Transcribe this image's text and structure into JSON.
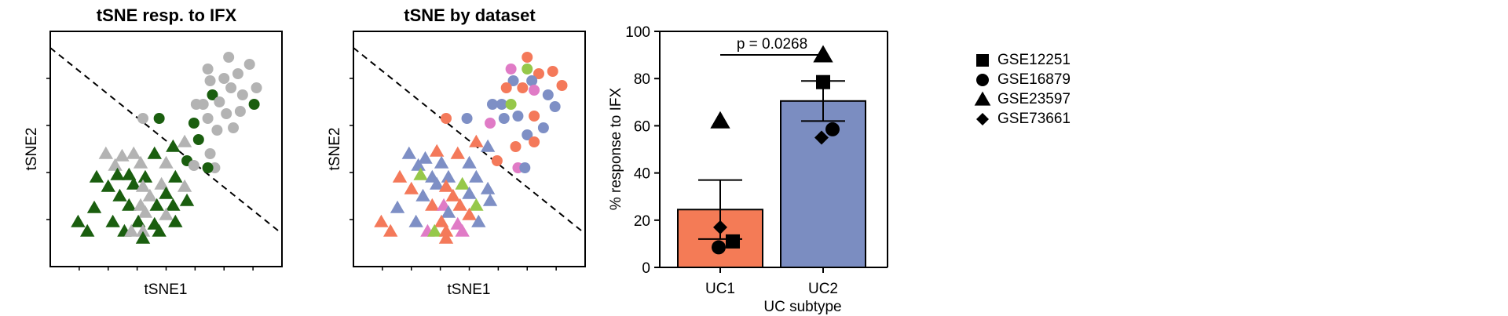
{
  "chart_data": [
    {
      "type": "scatter",
      "title": "tSNE resp. to IFX",
      "xlabel": "tSNE1",
      "ylabel": "tSNE2",
      "xlim": [
        0,
        10
      ],
      "ylim": [
        0,
        10
      ],
      "dashed_line": [
        [
          0,
          9.3
        ],
        [
          10,
          1.4
        ]
      ],
      "colors": {
        "responder": "#1a5e0f",
        "nonresponder": "#b3b3b3"
      },
      "points": [
        {
          "x": 6.8,
          "y": 8.4,
          "shape": "circle",
          "color": "#b3b3b3"
        },
        {
          "x": 7.7,
          "y": 8.9,
          "shape": "circle",
          "color": "#b3b3b3"
        },
        {
          "x": 8.6,
          "y": 8.6,
          "shape": "circle",
          "color": "#b3b3b3"
        },
        {
          "x": 6.9,
          "y": 7.9,
          "shape": "circle",
          "color": "#b3b3b3"
        },
        {
          "x": 7.5,
          "y": 8.0,
          "shape": "circle",
          "color": "#b3b3b3"
        },
        {
          "x": 8.1,
          "y": 8.2,
          "shape": "circle",
          "color": "#b3b3b3"
        },
        {
          "x": 7.0,
          "y": 7.3,
          "shape": "circle",
          "color": "#1a5e0f"
        },
        {
          "x": 7.3,
          "y": 7.0,
          "shape": "circle",
          "color": "#b3b3b3"
        },
        {
          "x": 7.8,
          "y": 7.6,
          "shape": "circle",
          "color": "#b3b3b3"
        },
        {
          "x": 8.3,
          "y": 7.3,
          "shape": "circle",
          "color": "#b3b3b3"
        },
        {
          "x": 8.9,
          "y": 7.6,
          "shape": "circle",
          "color": "#b3b3b3"
        },
        {
          "x": 6.3,
          "y": 6.9,
          "shape": "circle",
          "color": "#b3b3b3"
        },
        {
          "x": 6.6,
          "y": 6.9,
          "shape": "circle",
          "color": "#b3b3b3"
        },
        {
          "x": 6.8,
          "y": 6.3,
          "shape": "circle",
          "color": "#b3b3b3"
        },
        {
          "x": 7.6,
          "y": 6.5,
          "shape": "circle",
          "color": "#b3b3b3"
        },
        {
          "x": 8.2,
          "y": 6.6,
          "shape": "circle",
          "color": "#b3b3b3"
        },
        {
          "x": 8.8,
          "y": 6.9,
          "shape": "circle",
          "color": "#1a5e0f"
        },
        {
          "x": 6.2,
          "y": 6.1,
          "shape": "circle",
          "color": "#1a5e0f"
        },
        {
          "x": 7.2,
          "y": 5.8,
          "shape": "circle",
          "color": "#b3b3b3"
        },
        {
          "x": 7.9,
          "y": 5.9,
          "shape": "circle",
          "color": "#b3b3b3"
        },
        {
          "x": 4.7,
          "y": 6.3,
          "shape": "circle",
          "color": "#1a5e0f"
        },
        {
          "x": 4.0,
          "y": 6.3,
          "shape": "circle",
          "color": "#b3b3b3"
        },
        {
          "x": 6.4,
          "y": 5.4,
          "shape": "circle",
          "color": "#1a5e0f"
        },
        {
          "x": 6.9,
          "y": 4.8,
          "shape": "circle",
          "color": "#b3b3b3"
        },
        {
          "x": 5.9,
          "y": 4.5,
          "shape": "circle",
          "color": "#1a5e0f"
        },
        {
          "x": 6.2,
          "y": 4.3,
          "shape": "circle",
          "color": "#b3b3b3"
        },
        {
          "x": 7.1,
          "y": 4.2,
          "shape": "circle",
          "color": "#b3b3b3"
        },
        {
          "x": 6.8,
          "y": 4.2,
          "shape": "circle",
          "color": "#1a5e0f"
        },
        {
          "x": 5.8,
          "y": 5.3,
          "shape": "triangle",
          "color": "#b3b3b3"
        },
        {
          "x": 5.3,
          "y": 5.1,
          "shape": "triangle",
          "color": "#1a5e0f"
        },
        {
          "x": 2.4,
          "y": 4.8,
          "shape": "triangle",
          "color": "#b3b3b3"
        },
        {
          "x": 3.6,
          "y": 4.8,
          "shape": "triangle",
          "color": "#b3b3b3"
        },
        {
          "x": 4.5,
          "y": 4.8,
          "shape": "triangle",
          "color": "#1a5e0f"
        },
        {
          "x": 3.1,
          "y": 4.7,
          "shape": "triangle",
          "color": "#b3b3b3"
        },
        {
          "x": 2.8,
          "y": 4.3,
          "shape": "triangle",
          "color": "#b3b3b3"
        },
        {
          "x": 3.9,
          "y": 4.4,
          "shape": "triangle",
          "color": "#b3b3b3"
        },
        {
          "x": 5.0,
          "y": 4.4,
          "shape": "triangle",
          "color": "#b3b3b3"
        },
        {
          "x": 2.0,
          "y": 3.8,
          "shape": "triangle",
          "color": "#1a5e0f"
        },
        {
          "x": 2.9,
          "y": 3.9,
          "shape": "triangle",
          "color": "#1a5e0f"
        },
        {
          "x": 3.4,
          "y": 3.9,
          "shape": "triangle",
          "color": "#1a5e0f"
        },
        {
          "x": 4.1,
          "y": 3.8,
          "shape": "triangle",
          "color": "#1a5e0f"
        },
        {
          "x": 5.4,
          "y": 3.8,
          "shape": "triangle",
          "color": "#1a5e0f"
        },
        {
          "x": 2.5,
          "y": 3.4,
          "shape": "triangle",
          "color": "#1a5e0f"
        },
        {
          "x": 3.6,
          "y": 3.5,
          "shape": "triangle",
          "color": "#1a5e0f"
        },
        {
          "x": 4.0,
          "y": 3.4,
          "shape": "triangle",
          "color": "#b3b3b3"
        },
        {
          "x": 4.8,
          "y": 3.5,
          "shape": "triangle",
          "color": "#b3b3b3"
        },
        {
          "x": 5.8,
          "y": 3.4,
          "shape": "triangle",
          "color": "#b3b3b3"
        },
        {
          "x": 3.0,
          "y": 3.0,
          "shape": "triangle",
          "color": "#1a5e0f"
        },
        {
          "x": 4.3,
          "y": 3.0,
          "shape": "triangle",
          "color": "#b3b3b3"
        },
        {
          "x": 5.0,
          "y": 3.1,
          "shape": "triangle",
          "color": "#1a5e0f"
        },
        {
          "x": 1.9,
          "y": 2.5,
          "shape": "triangle",
          "color": "#1a5e0f"
        },
        {
          "x": 3.4,
          "y": 2.6,
          "shape": "triangle",
          "color": "#1a5e0f"
        },
        {
          "x": 3.9,
          "y": 2.6,
          "shape": "triangle",
          "color": "#b3b3b3"
        },
        {
          "x": 4.6,
          "y": 2.6,
          "shape": "triangle",
          "color": "#1a5e0f"
        },
        {
          "x": 5.3,
          "y": 2.6,
          "shape": "triangle",
          "color": "#1a5e0f"
        },
        {
          "x": 5.9,
          "y": 2.8,
          "shape": "triangle",
          "color": "#1a5e0f"
        },
        {
          "x": 4.1,
          "y": 2.3,
          "shape": "triangle",
          "color": "#b3b3b3"
        },
        {
          "x": 5.0,
          "y": 2.2,
          "shape": "triangle",
          "color": "#b3b3b3"
        },
        {
          "x": 3.8,
          "y": 1.9,
          "shape": "triangle",
          "color": "#1a5e0f"
        },
        {
          "x": 4.5,
          "y": 1.8,
          "shape": "triangle",
          "color": "#1a5e0f"
        },
        {
          "x": 5.4,
          "y": 1.9,
          "shape": "triangle",
          "color": "#1a5e0f"
        },
        {
          "x": 1.2,
          "y": 1.9,
          "shape": "triangle",
          "color": "#1a5e0f"
        },
        {
          "x": 2.7,
          "y": 1.9,
          "shape": "triangle",
          "color": "#1a5e0f"
        },
        {
          "x": 1.6,
          "y": 1.5,
          "shape": "triangle",
          "color": "#1a5e0f"
        },
        {
          "x": 3.2,
          "y": 1.5,
          "shape": "triangle",
          "color": "#1a5e0f"
        },
        {
          "x": 3.5,
          "y": 1.5,
          "shape": "triangle",
          "color": "#b3b3b3"
        },
        {
          "x": 4.0,
          "y": 1.5,
          "shape": "triangle",
          "color": "#b3b3b3"
        },
        {
          "x": 4.7,
          "y": 1.5,
          "shape": "triangle",
          "color": "#1a5e0f"
        },
        {
          "x": 4.0,
          "y": 1.2,
          "shape": "triangle",
          "color": "#1a5e0f"
        }
      ]
    },
    {
      "type": "scatter",
      "title": "tSNE by dataset",
      "xlabel": "tSNE1",
      "ylabel": "tSNE2",
      "xlim": [
        0,
        10
      ],
      "ylim": [
        0,
        10
      ],
      "dashed_line": [
        [
          0,
          9.3
        ],
        [
          10,
          1.4
        ]
      ],
      "colors": {
        "orange": "#f4795a",
        "blue": "#7e8fc5",
        "pink": "#e07bc6",
        "green": "#96c84a"
      },
      "points": [
        {
          "x": 7.5,
          "y": 8.9,
          "shape": "circle",
          "color": "#f4795a"
        },
        {
          "x": 6.8,
          "y": 8.4,
          "shape": "circle",
          "color": "#e07bc6"
        },
        {
          "x": 7.5,
          "y": 8.4,
          "shape": "circle",
          "color": "#96c84a"
        },
        {
          "x": 8.0,
          "y": 8.2,
          "shape": "circle",
          "color": "#f4795a"
        },
        {
          "x": 8.6,
          "y": 8.3,
          "shape": "circle",
          "color": "#f4795a"
        },
        {
          "x": 6.9,
          "y": 7.9,
          "shape": "circle",
          "color": "#7e8fc5"
        },
        {
          "x": 7.7,
          "y": 7.9,
          "shape": "circle",
          "color": "#7e8fc5"
        },
        {
          "x": 6.6,
          "y": 7.6,
          "shape": "circle",
          "color": "#f4795a"
        },
        {
          "x": 7.3,
          "y": 7.6,
          "shape": "circle",
          "color": "#f4795a"
        },
        {
          "x": 7.8,
          "y": 7.5,
          "shape": "circle",
          "color": "#e07bc6"
        },
        {
          "x": 8.4,
          "y": 7.3,
          "shape": "circle",
          "color": "#7e8fc5"
        },
        {
          "x": 9.0,
          "y": 7.7,
          "shape": "circle",
          "color": "#f4795a"
        },
        {
          "x": 6.0,
          "y": 6.9,
          "shape": "circle",
          "color": "#7e8fc5"
        },
        {
          "x": 6.4,
          "y": 6.9,
          "shape": "circle",
          "color": "#7e8fc5"
        },
        {
          "x": 6.8,
          "y": 6.9,
          "shape": "circle",
          "color": "#96c84a"
        },
        {
          "x": 8.7,
          "y": 6.8,
          "shape": "circle",
          "color": "#7e8fc5"
        },
        {
          "x": 6.5,
          "y": 6.3,
          "shape": "circle",
          "color": "#7e8fc5"
        },
        {
          "x": 7.1,
          "y": 6.4,
          "shape": "circle",
          "color": "#7e8fc5"
        },
        {
          "x": 7.8,
          "y": 6.4,
          "shape": "circle",
          "color": "#f4795a"
        },
        {
          "x": 5.9,
          "y": 6.1,
          "shape": "circle",
          "color": "#e07bc6"
        },
        {
          "x": 8.2,
          "y": 5.9,
          "shape": "circle",
          "color": "#7e8fc5"
        },
        {
          "x": 7.5,
          "y": 5.6,
          "shape": "circle",
          "color": "#7e8fc5"
        },
        {
          "x": 4.0,
          "y": 6.3,
          "shape": "circle",
          "color": "#f4795a"
        },
        {
          "x": 4.9,
          "y": 6.3,
          "shape": "circle",
          "color": "#7e8fc5"
        },
        {
          "x": 7.8,
          "y": 5.3,
          "shape": "circle",
          "color": "#f4795a"
        },
        {
          "x": 7.0,
          "y": 5.1,
          "shape": "circle",
          "color": "#f4795a"
        },
        {
          "x": 6.2,
          "y": 4.5,
          "shape": "circle",
          "color": "#f4795a"
        },
        {
          "x": 7.1,
          "y": 4.2,
          "shape": "circle",
          "color": "#e07bc6"
        },
        {
          "x": 7.4,
          "y": 4.2,
          "shape": "circle",
          "color": "#7e8fc5"
        },
        {
          "x": 5.3,
          "y": 5.3,
          "shape": "triangle",
          "color": "#f4795a"
        },
        {
          "x": 5.8,
          "y": 5.1,
          "shape": "triangle",
          "color": "#7e8fc5"
        },
        {
          "x": 2.4,
          "y": 4.8,
          "shape": "triangle",
          "color": "#7e8fc5"
        },
        {
          "x": 3.6,
          "y": 4.9,
          "shape": "triangle",
          "color": "#f4795a"
        },
        {
          "x": 4.5,
          "y": 4.8,
          "shape": "triangle",
          "color": "#f4795a"
        },
        {
          "x": 3.1,
          "y": 4.6,
          "shape": "triangle",
          "color": "#7e8fc5"
        },
        {
          "x": 2.8,
          "y": 4.3,
          "shape": "triangle",
          "color": "#7e8fc5"
        },
        {
          "x": 3.8,
          "y": 4.4,
          "shape": "triangle",
          "color": "#7e8fc5"
        },
        {
          "x": 5.0,
          "y": 4.4,
          "shape": "triangle",
          "color": "#7e8fc5"
        },
        {
          "x": 2.0,
          "y": 3.8,
          "shape": "triangle",
          "color": "#f4795a"
        },
        {
          "x": 2.9,
          "y": 3.9,
          "shape": "triangle",
          "color": "#96c84a"
        },
        {
          "x": 3.4,
          "y": 3.8,
          "shape": "triangle",
          "color": "#7e8fc5"
        },
        {
          "x": 4.1,
          "y": 3.8,
          "shape": "triangle",
          "color": "#7e8fc5"
        },
        {
          "x": 5.3,
          "y": 3.8,
          "shape": "triangle",
          "color": "#7e8fc5"
        },
        {
          "x": 2.5,
          "y": 3.3,
          "shape": "triangle",
          "color": "#f4795a"
        },
        {
          "x": 3.6,
          "y": 3.5,
          "shape": "triangle",
          "color": "#7e8fc5"
        },
        {
          "x": 4.0,
          "y": 3.4,
          "shape": "triangle",
          "color": "#f4795a"
        },
        {
          "x": 4.7,
          "y": 3.5,
          "shape": "triangle",
          "color": "#96c84a"
        },
        {
          "x": 5.8,
          "y": 3.3,
          "shape": "triangle",
          "color": "#7e8fc5"
        },
        {
          "x": 3.0,
          "y": 3.0,
          "shape": "triangle",
          "color": "#7e8fc5"
        },
        {
          "x": 4.3,
          "y": 3.0,
          "shape": "triangle",
          "color": "#f4795a"
        },
        {
          "x": 5.0,
          "y": 3.1,
          "shape": "triangle",
          "color": "#7e8fc5"
        },
        {
          "x": 1.9,
          "y": 2.5,
          "shape": "triangle",
          "color": "#7e8fc5"
        },
        {
          "x": 3.4,
          "y": 2.6,
          "shape": "triangle",
          "color": "#f4795a"
        },
        {
          "x": 3.9,
          "y": 2.6,
          "shape": "triangle",
          "color": "#e07bc6"
        },
        {
          "x": 4.6,
          "y": 2.6,
          "shape": "triangle",
          "color": "#f4795a"
        },
        {
          "x": 5.3,
          "y": 2.6,
          "shape": "triangle",
          "color": "#96c84a"
        },
        {
          "x": 5.9,
          "y": 2.8,
          "shape": "triangle",
          "color": "#7e8fc5"
        },
        {
          "x": 4.1,
          "y": 2.3,
          "shape": "triangle",
          "color": "#7e8fc5"
        },
        {
          "x": 5.0,
          "y": 2.2,
          "shape": "triangle",
          "color": "#f4795a"
        },
        {
          "x": 3.8,
          "y": 1.9,
          "shape": "triangle",
          "color": "#f4795a"
        },
        {
          "x": 4.5,
          "y": 1.8,
          "shape": "triangle",
          "color": "#e07bc6"
        },
        {
          "x": 5.4,
          "y": 1.9,
          "shape": "triangle",
          "color": "#7e8fc5"
        },
        {
          "x": 1.2,
          "y": 1.9,
          "shape": "triangle",
          "color": "#f4795a"
        },
        {
          "x": 2.7,
          "y": 1.9,
          "shape": "triangle",
          "color": "#7e8fc5"
        },
        {
          "x": 1.6,
          "y": 1.5,
          "shape": "triangle",
          "color": "#f4795a"
        },
        {
          "x": 3.2,
          "y": 1.5,
          "shape": "triangle",
          "color": "#e07bc6"
        },
        {
          "x": 3.5,
          "y": 1.5,
          "shape": "triangle",
          "color": "#96c84a"
        },
        {
          "x": 4.0,
          "y": 1.5,
          "shape": "triangle",
          "color": "#f4795a"
        },
        {
          "x": 4.7,
          "y": 1.5,
          "shape": "triangle",
          "color": "#e07bc6"
        },
        {
          "x": 4.0,
          "y": 1.2,
          "shape": "triangle",
          "color": "#f4795a"
        }
      ]
    },
    {
      "type": "bar",
      "title": "",
      "xlabel": "UC subtype",
      "ylabel": "% response to IFX",
      "ylim": [
        0,
        100
      ],
      "yticks": [
        "0",
        "20",
        "40",
        "60",
        "80",
        "100"
      ],
      "categories": [
        "UC1",
        "UC2"
      ],
      "values": [
        24.5,
        70.5
      ],
      "errors": [
        12.5,
        8.5
      ],
      "bar_colors": [
        "#f47b56",
        "#7b8dc1"
      ],
      "annotation": "p = 0.0268",
      "markers": [
        {
          "category": "UC1",
          "dataset": "GSE12251",
          "shape": "square",
          "value": 11
        },
        {
          "category": "UC1",
          "dataset": "GSE16879",
          "shape": "circle",
          "value": 8.5
        },
        {
          "category": "UC1",
          "dataset": "GSE23597",
          "shape": "triangle",
          "value": 62
        },
        {
          "category": "UC1",
          "dataset": "GSE73661",
          "shape": "diamond",
          "value": 17
        },
        {
          "category": "UC2",
          "dataset": "GSE12251",
          "shape": "square",
          "value": 78.5
        },
        {
          "category": "UC2",
          "dataset": "GSE16879",
          "shape": "circle",
          "value": 58.5
        },
        {
          "category": "UC2",
          "dataset": "GSE23597",
          "shape": "triangle",
          "value": 90
        },
        {
          "category": "UC2",
          "dataset": "GSE73661",
          "shape": "diamond",
          "value": 55
        }
      ]
    }
  ],
  "legend": [
    {
      "label": "GSE12251",
      "shape": "square"
    },
    {
      "label": "GSE16879",
      "shape": "circle"
    },
    {
      "label": "GSE23597",
      "shape": "triangle"
    },
    {
      "label": "GSE73661",
      "shape": "diamond"
    }
  ]
}
